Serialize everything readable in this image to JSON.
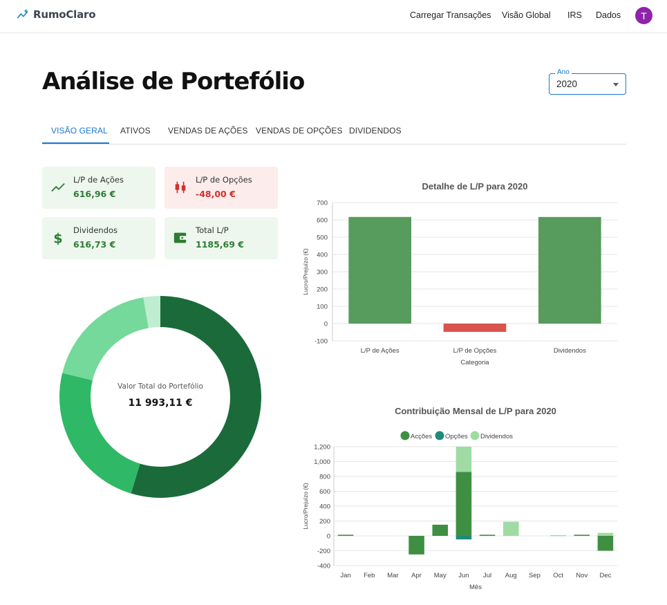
{
  "app": {
    "brand": "RumoClaro",
    "nav": [
      "Carregar Transações",
      "Visão Global",
      "IRS",
      "Dados"
    ],
    "avatar_initial": "T"
  },
  "page": {
    "title": "Análise de Portefólio"
  },
  "year_select": {
    "label": "Ano",
    "value": "2020"
  },
  "tabs": [
    {
      "label": "VISÃO GERAL",
      "active": true
    },
    {
      "label": "ATIVOS",
      "active": false
    },
    {
      "label": "VENDAS DE AÇÕES",
      "active": false
    },
    {
      "label": "VENDAS DE OPÇÕES",
      "active": false
    },
    {
      "label": "DIVIDENDOS",
      "active": false
    }
  ],
  "kpis": [
    {
      "label": "L/P de Ações",
      "value": "616,96 €",
      "icon": "trending-up-icon",
      "tone": "positive"
    },
    {
      "label": "L/P de Opções",
      "value": "-48,00 €",
      "icon": "candlestick-icon",
      "tone": "negative"
    },
    {
      "label": "Dividendos",
      "value": "616,73 €",
      "icon": "dollar-icon",
      "tone": "positive"
    },
    {
      "label": "Total L/P",
      "value": "1185,69 €",
      "icon": "wallet-icon",
      "tone": "positive"
    }
  ],
  "portfolio": {
    "center_label": "Valor Total do Portefólio",
    "center_value": "11 993,11 €",
    "slices": [
      {
        "fraction": 0.547,
        "color": "#1b6b3a"
      },
      {
        "fraction": 0.241,
        "color": "#2fb866"
      },
      {
        "fraction": 0.185,
        "color": "#74d99a"
      },
      {
        "fraction": 0.027,
        "color": "#bfedd0"
      }
    ]
  },
  "colors": {
    "accent": "#1976d2",
    "positive": "#2e7d32",
    "negative": "#d32f2f",
    "bar_positive": "#579b5d",
    "bar_negative": "#d9534f",
    "acoes": "#3f8f43",
    "opcoes": "#1f8a7a",
    "dividendos": "#a0dba4"
  },
  "chart_data": [
    {
      "type": "bar",
      "title": "Detalhe de L/P para 2020",
      "xlabel": "Categoria",
      "ylabel": "Lucro/Prejuízo (€)",
      "categories": [
        "L/P de Ações",
        "L/P de Opções",
        "Dividendos"
      ],
      "values": [
        616.96,
        -48.0,
        616.73
      ],
      "ylim": [
        -100,
        700
      ],
      "yticks": [
        700,
        600,
        500,
        400,
        300,
        200,
        100,
        0,
        -100
      ],
      "grid": true,
      "legend": "none"
    },
    {
      "type": "bar",
      "stacked": true,
      "title": "Contribuição Mensal de L/P para 2020",
      "xlabel": "Mês",
      "ylabel": "Lucro/Prejuízo (€)",
      "categories": [
        "Jan",
        "Feb",
        "Mar",
        "Apr",
        "May",
        "Jun",
        "Jul",
        "Aug",
        "Sep",
        "Oct",
        "Nov",
        "Dec"
      ],
      "series": [
        {
          "name": "Acções",
          "values": [
            15,
            0,
            0,
            -250,
            150,
            860,
            15,
            0,
            0,
            0,
            15,
            -200
          ]
        },
        {
          "name": "Opções",
          "values": [
            0,
            0,
            0,
            0,
            0,
            -48,
            0,
            0,
            0,
            0,
            0,
            0
          ]
        },
        {
          "name": "Dividendos",
          "values": [
            0,
            0,
            0,
            0,
            0,
            340,
            0,
            190,
            0,
            10,
            0,
            40
          ]
        }
      ],
      "ylim": [
        -400,
        1200
      ],
      "ytick_labels": [
        "1,200",
        "1,000",
        "800",
        "600",
        "400",
        "200",
        "0",
        "-200",
        "-400"
      ],
      "grid": true,
      "legend": "top-center"
    }
  ]
}
